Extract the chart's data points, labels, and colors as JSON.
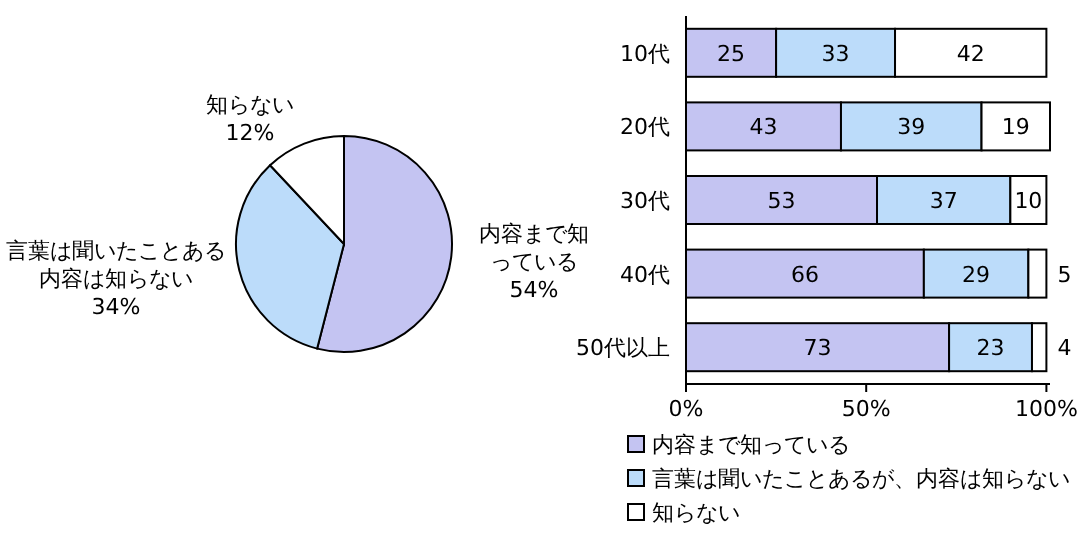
{
  "chart_data": [
    {
      "type": "pie",
      "categories": [
        "内容まで知っている",
        "言葉は聞いたことある内容は知らない",
        "知らない"
      ],
      "values": [
        54,
        34,
        12
      ],
      "colors": [
        "#c4c4f2",
        "#bcdcfa",
        "#ffffff"
      ],
      "value_labels": [
        "54%",
        "34%",
        "12%"
      ]
    },
    {
      "type": "bar",
      "orientation": "horizontal",
      "stacked": true,
      "categories": [
        "10代",
        "20代",
        "30代",
        "40代",
        "50代以上"
      ],
      "series": [
        {
          "name": "内容まで知っている",
          "color": "#c4c4f2",
          "values": [
            25,
            43,
            53,
            66,
            73
          ]
        },
        {
          "name": "言葉は聞いたことあるが、内容は知らない",
          "color": "#bcdcfa",
          "values": [
            33,
            39,
            37,
            29,
            23
          ]
        },
        {
          "name": "知らない",
          "color": "#ffffff",
          "values": [
            42,
            19,
            10,
            5,
            4
          ]
        }
      ],
      "xlim": [
        0,
        101
      ],
      "xticks": [
        {
          "value": 0,
          "label": "0%"
        },
        {
          "value": 50,
          "label": "50%"
        },
        {
          "value": 100,
          "label": "100%"
        }
      ],
      "data_labels": true,
      "legend": "bottom"
    }
  ]
}
